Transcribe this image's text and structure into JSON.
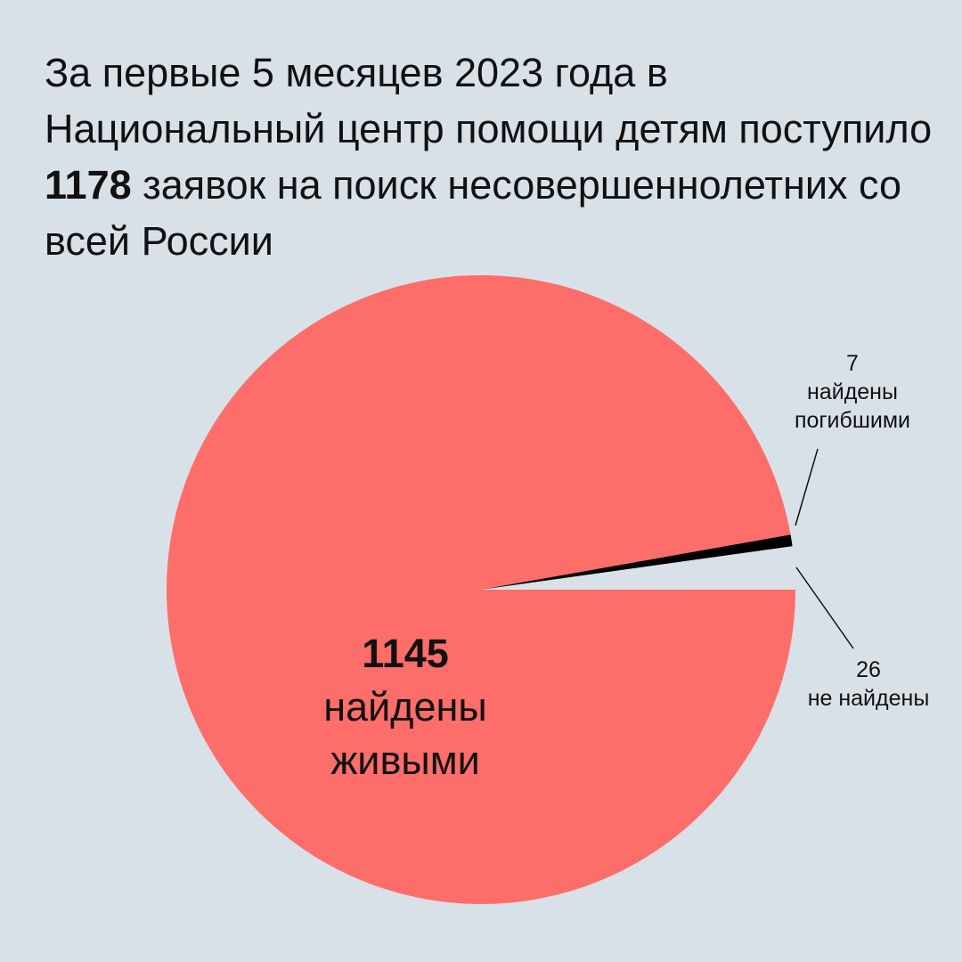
{
  "title": {
    "before": "За первые 5 месяцев 2023 года в Национальный центр помощи детям поступило",
    "highlight": "1178",
    "after": "заявок на поиск несовершеннолетних со всей России"
  },
  "colors": {
    "background": "#d9e1e8",
    "found_alive": "#fd6d69",
    "found_dead": "#000000",
    "not_found": "#d9e1e8",
    "text": "#111111"
  },
  "chart_data": {
    "type": "pie",
    "total": 1178,
    "slices": [
      {
        "key": "alive",
        "value": 1145,
        "label_value": "1145",
        "label_text_1": "найдены",
        "label_text_2": "живыми",
        "color": "#fd6d69"
      },
      {
        "key": "dead",
        "value": 7,
        "label_value": "7",
        "label_text_1": "найдены",
        "label_text_2": "погибшими",
        "color": "#000000"
      },
      {
        "key": "not_found",
        "value": 26,
        "label_value": "26",
        "label_text_1": "не найдены",
        "color": "#d9e1e8"
      }
    ]
  }
}
